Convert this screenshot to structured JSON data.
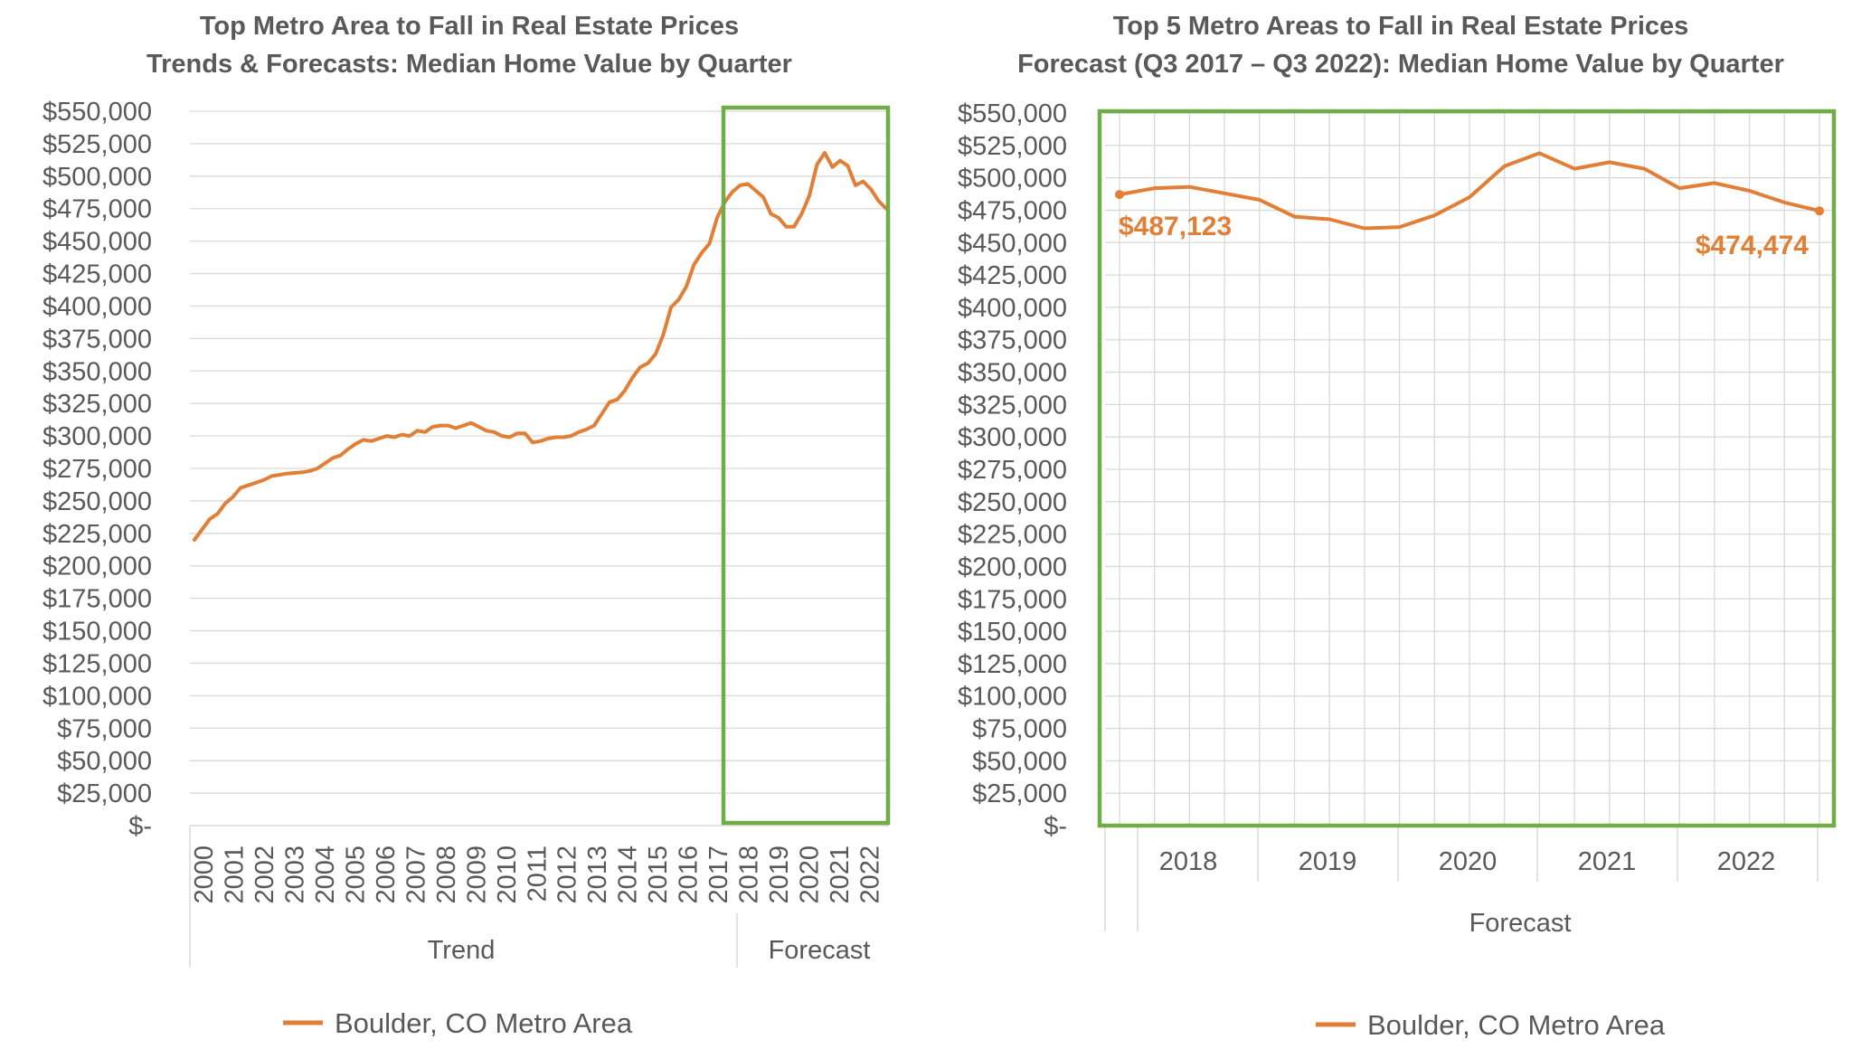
{
  "chart_data": [
    {
      "type": "line",
      "title": "Top Metro Area to Fall in Real Estate Prices",
      "subtitle": "Trends & Forecasts: Median Home Value by Quarter",
      "ylim": [
        0,
        550000
      ],
      "y_ticks": [
        "$-",
        "$25,000",
        "$50,000",
        "$75,000",
        "$100,000",
        "$125,000",
        "$150,000",
        "$175,000",
        "$200,000",
        "$225,000",
        "$250,000",
        "$275,000",
        "$300,000",
        "$325,000",
        "$350,000",
        "$375,000",
        "$400,000",
        "$425,000",
        "$450,000",
        "$475,000",
        "$500,000",
        "$525,000",
        "$550,000"
      ],
      "years": [
        "2000",
        "2001",
        "2002",
        "2003",
        "2004",
        "2005",
        "2006",
        "2007",
        "2008",
        "2009",
        "2010",
        "2011",
        "2012",
        "2013",
        "2014",
        "2015",
        "2016",
        "2017",
        "2018",
        "2019",
        "2020",
        "2021",
        "2022"
      ],
      "groups": [
        "Trend",
        "Forecast"
      ],
      "legend": "Boulder, CO Metro Area",
      "grid": "horizontal",
      "legend_position": "bottom",
      "colors": {
        "line": "#E07F35",
        "highlight": "#70AD47"
      },
      "series": [
        {
          "name": "Boulder, CO Metro Area",
          "values": [
            220000,
            228000,
            236000,
            240000,
            248000,
            253000,
            260000,
            262000,
            264000,
            266000,
            269000,
            270000,
            271000,
            271500,
            272000,
            273000,
            275000,
            279000,
            283000,
            285000,
            290000,
            294000,
            297000,
            296000,
            298000,
            300000,
            299000,
            301000,
            300000,
            304000,
            303000,
            307000,
            308000,
            308000,
            306000,
            308000,
            310000,
            307000,
            304000,
            303000,
            300000,
            299000,
            302000,
            302000,
            295000,
            296000,
            298000,
            299000,
            299000,
            300000,
            303000,
            305000,
            308000,
            317000,
            326000,
            328000,
            335000,
            345000,
            353000,
            356000,
            363000,
            378000,
            399000,
            405000,
            415000,
            432000,
            441000,
            448000,
            468000,
            480000,
            488000,
            493000,
            494000,
            489000,
            484000,
            471000,
            468000,
            461000,
            461000,
            471000,
            485000,
            509000,
            518000,
            507000,
            512000,
            508000,
            493000,
            496000,
            490000,
            481000,
            475000
          ]
        }
      ]
    },
    {
      "type": "line",
      "title": "Top 5 Metro Areas to Fall in Real Estate Prices",
      "subtitle": "Forecast (Q3 2017 – Q3 2022): Median Home Value by Quarter",
      "ylim": [
        0,
        550000
      ],
      "y_ticks": [
        "$-",
        "$25,000",
        "$50,000",
        "$75,000",
        "$100,000",
        "$125,000",
        "$150,000",
        "$175,000",
        "$200,000",
        "$225,000",
        "$250,000",
        "$275,000",
        "$300,000",
        "$325,000",
        "$350,000",
        "$375,000",
        "$400,000",
        "$425,000",
        "$450,000",
        "$475,000",
        "$500,000",
        "$525,000",
        "$550,000"
      ],
      "years": [
        "2018",
        "2019",
        "2020",
        "2021",
        "2022"
      ],
      "group": "Forecast",
      "legend": "Boulder, CO Metro Area",
      "grid": "both",
      "legend_position": "bottom",
      "colors": {
        "line": "#E07F35",
        "highlight": "#70AD47"
      },
      "labels": {
        "first": "$487,123",
        "last": "$474,474"
      },
      "series": [
        {
          "name": "Boulder, CO Metro Area",
          "values": [
            487123,
            492000,
            493000,
            488000,
            483000,
            470000,
            468000,
            461000,
            462000,
            471000,
            485000,
            509000,
            519000,
            507000,
            512000,
            507000,
            492000,
            496000,
            490000,
            481000,
            474474
          ]
        }
      ]
    }
  ]
}
